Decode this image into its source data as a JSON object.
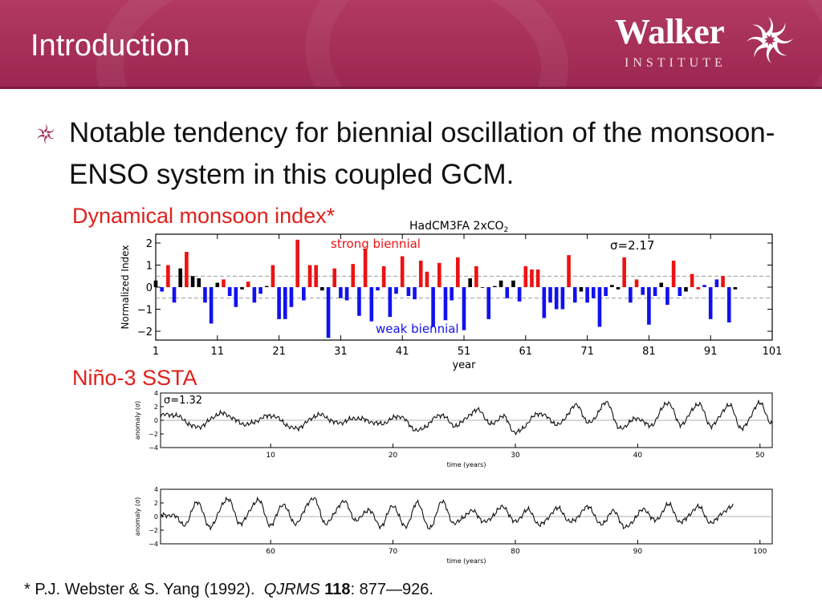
{
  "header": {
    "title": "Introduction",
    "logo_name": "Walker",
    "logo_subtitle": "INSTITUTE",
    "background_color": "#a3305a",
    "logo_icon": "walker-swirl-icon"
  },
  "bullet": {
    "icon": "swirl-bullet-icon",
    "text": "Notable tendency for biennial oscillation of the monsoon-ENSO system in this coupled GCM."
  },
  "labels": {
    "monsoon_index": "Dynamical monsoon index*",
    "nino3": "Niño-3 SSTA"
  },
  "footnote": {
    "prefix": "* P.J. Webster & S. Yang (1992).",
    "journal": "QJRMS",
    "volume": "118",
    "pages": ": 877—926."
  },
  "chart_data": [
    {
      "type": "bar",
      "title": "HadCM3FA 2xCO",
      "title_subscript": "2",
      "sigma_label": "σ=2.17",
      "xlabel": "year",
      "ylabel": "Normalized Index",
      "xlim": [
        1,
        101
      ],
      "ylim": [
        -2.4,
        2.4
      ],
      "xticks": [
        "1",
        "11",
        "21",
        "31",
        "41",
        "51",
        "61",
        "71",
        "81",
        "91",
        "101"
      ],
      "yticks": [
        "2",
        "1",
        "0",
        "−1",
        "−2"
      ],
      "threshold": 0.5,
      "annotations": [
        "strong biennial",
        "weak biennial"
      ],
      "colors": {
        "strong": "#ee1111",
        "weak": "#1111ee",
        "neutral": "#000000"
      },
      "years": [
        1,
        2,
        3,
        4,
        5,
        6,
        7,
        8,
        9,
        10,
        11,
        12,
        13,
        14,
        15,
        16,
        17,
        18,
        19,
        20,
        21,
        22,
        23,
        24,
        25,
        26,
        27,
        28,
        29,
        30,
        31,
        32,
        33,
        34,
        35,
        36,
        37,
        38,
        39,
        40,
        41,
        42,
        43,
        44,
        45,
        46,
        47,
        48,
        49,
        50,
        51,
        52,
        53,
        54,
        55,
        56,
        57,
        58,
        59,
        60,
        61,
        62,
        63,
        64,
        65,
        66,
        67,
        68,
        69,
        70,
        71,
        72,
        73,
        74,
        75,
        76,
        77,
        78,
        79,
        80,
        81,
        82,
        83,
        84,
        85,
        86,
        87,
        88,
        89,
        90,
        91,
        92,
        93,
        94,
        95
      ],
      "values": [
        0.3,
        -0.2,
        1.0,
        -0.7,
        0.85,
        1.6,
        0.5,
        0.4,
        -0.7,
        -1.65,
        0.2,
        0.35,
        -0.4,
        -0.9,
        -0.1,
        0.25,
        -0.7,
        -0.3,
        0.05,
        1.0,
        -1.45,
        -1.45,
        -0.9,
        2.15,
        -0.6,
        1.0,
        1.0,
        -0.15,
        -2.3,
        0.85,
        -0.5,
        -0.6,
        1.05,
        -1.3,
        1.75,
        -1.55,
        -0.15,
        0.95,
        -1.35,
        -0.3,
        1.4,
        -0.4,
        -0.55,
        1.2,
        0.7,
        -1.8,
        1.1,
        -1.5,
        -0.6,
        1.35,
        -1.95,
        0.4,
        0.95,
        0.0,
        -1.45,
        0.05,
        0.3,
        -0.5,
        0.3,
        -0.65,
        0.95,
        0.8,
        0.8,
        -1.4,
        -0.7,
        -1.0,
        -1.0,
        1.45,
        -0.7,
        -0.2,
        -0.7,
        -0.5,
        -1.8,
        -0.4,
        0.1,
        -0.1,
        1.35,
        -0.7,
        0.35,
        -0.35,
        -1.7,
        -0.4,
        0.2,
        -0.8,
        1.2,
        -0.4,
        -0.2,
        0.6,
        -0.1,
        0.1,
        -1.45,
        0.35,
        0.5,
        -1.6,
        -0.1
      ],
      "colors_per_bar": [
        "k",
        "b",
        "r",
        "b",
        "k",
        "r",
        "k",
        "k",
        "b",
        "b",
        "k",
        "r",
        "b",
        "b",
        "k",
        "r",
        "b",
        "b",
        "k",
        "r",
        "b",
        "b",
        "b",
        "r",
        "b",
        "r",
        "r",
        "k",
        "b",
        "r",
        "b",
        "b",
        "r",
        "b",
        "r",
        "b",
        "b",
        "r",
        "b",
        "b",
        "r",
        "b",
        "b",
        "r",
        "r",
        "b",
        "r",
        "b",
        "b",
        "r",
        "b",
        "k",
        "r",
        "k",
        "b",
        "k",
        "k",
        "b",
        "k",
        "b",
        "r",
        "r",
        "r",
        "b",
        "b",
        "b",
        "b",
        "r",
        "b",
        "k",
        "b",
        "b",
        "b",
        "b",
        "k",
        "k",
        "r",
        "b",
        "r",
        "b",
        "b",
        "b",
        "k",
        "b",
        "r",
        "b",
        "k",
        "r",
        "r",
        "b",
        "b",
        "b",
        "r",
        "b",
        "k"
      ]
    },
    {
      "type": "line",
      "title": "",
      "sigma_label": "σ=1.32",
      "xlabel": "time (years)",
      "ylabel": "anomaly (σ)",
      "xlim": [
        1,
        51
      ],
      "ylim": [
        -4,
        4
      ],
      "xticks": [
        "10",
        "20",
        "30",
        "40",
        "50"
      ],
      "yticks": [
        "4",
        "2",
        "0",
        "−2",
        "−4"
      ],
      "peaks": [
        [
          2,
          0.8
        ],
        [
          4,
          -1.0
        ],
        [
          6,
          1.0
        ],
        [
          8,
          -0.6
        ],
        [
          10,
          0.7
        ],
        [
          12,
          -1.2
        ],
        [
          14,
          0.8
        ],
        [
          15.5,
          -0.4
        ],
        [
          17,
          0.3
        ],
        [
          19,
          -0.5
        ],
        [
          20.5,
          0.6
        ],
        [
          22,
          -1.5
        ],
        [
          24,
          0.8
        ],
        [
          25,
          -0.8
        ],
        [
          27,
          1.5
        ],
        [
          28,
          -0.6
        ],
        [
          29,
          0.6
        ],
        [
          30,
          -1.8
        ],
        [
          32,
          1.0
        ],
        [
          33.5,
          -0.6
        ],
        [
          35,
          2.2
        ],
        [
          36,
          -0.4
        ],
        [
          37.5,
          2.6
        ],
        [
          38.5,
          -1.2
        ],
        [
          40,
          0.3
        ],
        [
          41,
          -0.8
        ],
        [
          42.5,
          2.6
        ],
        [
          43.5,
          -0.6
        ],
        [
          45,
          2.4
        ],
        [
          46,
          -0.8
        ],
        [
          47.5,
          2.2
        ],
        [
          48.5,
          -1.2
        ],
        [
          50,
          2.5
        ],
        [
          51,
          -0.6
        ]
      ]
    },
    {
      "type": "line",
      "title": "",
      "xlabel": "time (years)",
      "ylabel": "anomaly (σ)",
      "xlim": [
        51,
        101
      ],
      "ylim": [
        -4,
        4
      ],
      "xticks": [
        "60",
        "70",
        "80",
        "90",
        "100"
      ],
      "yticks": [
        "4",
        "2",
        "0",
        "−2",
        "−4"
      ],
      "peaks": [
        [
          52,
          0.2
        ],
        [
          53,
          -1.2
        ],
        [
          54,
          2.2
        ],
        [
          55,
          -1.5
        ],
        [
          56.5,
          2.6
        ],
        [
          57.5,
          -1.0
        ],
        [
          59,
          2.4
        ],
        [
          60,
          -1.3
        ],
        [
          61,
          1.8
        ],
        [
          62,
          -1.0
        ],
        [
          63.5,
          2.7
        ],
        [
          64.5,
          -1.0
        ],
        [
          66,
          2.2
        ],
        [
          67,
          -0.6
        ],
        [
          68,
          1.0
        ],
        [
          69,
          -1.4
        ],
        [
          70,
          1.6
        ],
        [
          71,
          -1.5
        ],
        [
          72,
          2.0
        ],
        [
          73,
          -1.8
        ],
        [
          74,
          2.2
        ],
        [
          75,
          -1.0
        ],
        [
          76.5,
          0.8
        ],
        [
          77.5,
          -0.8
        ],
        [
          79,
          1.4
        ],
        [
          80,
          -0.8
        ],
        [
          81,
          1.0
        ],
        [
          82,
          -1.2
        ],
        [
          83.5,
          1.2
        ],
        [
          84.5,
          -0.8
        ],
        [
          86,
          1.4
        ],
        [
          87,
          -1.2
        ],
        [
          88,
          0.8
        ],
        [
          89,
          -1.6
        ],
        [
          90.5,
          1.0
        ],
        [
          91.5,
          -0.6
        ],
        [
          92.5,
          1.8
        ],
        [
          93.5,
          -0.8
        ],
        [
          95,
          1.4
        ],
        [
          96,
          -1.0
        ],
        [
          97,
          0.6
        ],
        [
          97.8,
          1.6
        ]
      ]
    }
  ]
}
